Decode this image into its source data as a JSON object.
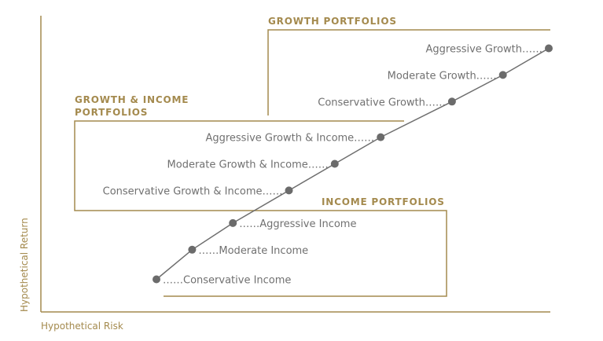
{
  "chart_data": {
    "type": "line",
    "xlabel": "Hypothetical Risk",
    "ylabel": "Hypothetical Return",
    "axis_color": "#a48a4e",
    "line_color": "#6e6e6e",
    "point_color": "#6b6b6b",
    "text_color": "#707070",
    "group_color": "#a48a4e",
    "xlim": [
      0,
      100
    ],
    "ylim": [
      0,
      100
    ],
    "points": [
      {
        "label": "Conservative Income",
        "x": 23,
        "y": 11
      },
      {
        "label": "Moderate Income",
        "x": 30,
        "y": 21
      },
      {
        "label": "Aggressive Income",
        "x": 38,
        "y": 30
      },
      {
        "label": "Conservative Growth & Income",
        "x": 49,
        "y": 41
      },
      {
        "label": "Moderate Growth & Income",
        "x": 58,
        "y": 50
      },
      {
        "label": "Aggressive Growth & Income",
        "x": 67,
        "y": 59
      },
      {
        "label": "Conservative Growth",
        "x": 81,
        "y": 71
      },
      {
        "label": "Moderate Growth",
        "x": 91,
        "y": 80
      },
      {
        "label": "Aggressive Growth",
        "x": 100,
        "y": 89
      }
    ],
    "groups": [
      {
        "title": [
          "GROWTH PORTFOLIOS"
        ],
        "members": [
          "Conservative Growth",
          "Moderate Growth",
          "Aggressive Growth"
        ]
      },
      {
        "title": [
          "GROWTH & INCOME",
          "PORTFOLIOS"
        ],
        "members": [
          "Conservative Growth & Income",
          "Moderate Growth & Income",
          "Aggressive Growth & Income"
        ]
      },
      {
        "title": [
          "INCOME PORTFOLIOS"
        ],
        "members": [
          "Conservative Income",
          "Moderate Income",
          "Aggressive Income"
        ]
      }
    ]
  }
}
